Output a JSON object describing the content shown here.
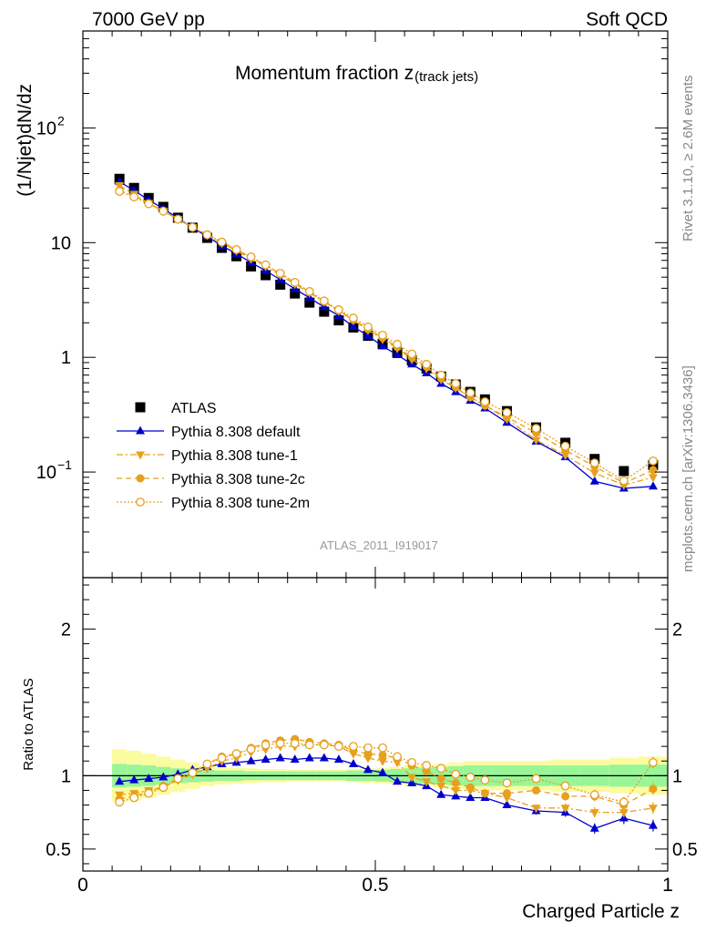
{
  "header": {
    "left": "7000 GeV pp",
    "right": "Soft QCD"
  },
  "side_labels": {
    "rivet": "Rivet 3.1.10, ≥ 2.6M events",
    "mcplots": "mcplots.cern.ch [arXiv:1306.3436]"
  },
  "watermark": "ATLAS_2011_I919017",
  "colors": {
    "atlas": "#000000",
    "default": "#0000cc",
    "tune": "#e6a01e",
    "band_inner": "#98f598",
    "band_outer": "#fbfba0"
  },
  "chart_data": [
    {
      "type": "line",
      "title": "Momentum fraction z",
      "title_sub": "(track jets)",
      "ylabel": "(1/Njet)dN/dz",
      "yscale": "log",
      "ylim": [
        0.012,
        700
      ],
      "xlim": [
        0,
        1
      ],
      "ytick_labels": [
        {
          "value": 100,
          "label": "10",
          "sup": "2"
        },
        {
          "value": 10,
          "label": "10",
          "sup": ""
        },
        {
          "value": 1,
          "label": "1",
          "sup": ""
        },
        {
          "value": 0.1,
          "label": "10",
          "sup": "−1"
        }
      ],
      "x": [
        0.0625,
        0.0875,
        0.1125,
        0.1375,
        0.1625,
        0.1875,
        0.2125,
        0.2375,
        0.2625,
        0.2875,
        0.3125,
        0.3375,
        0.3625,
        0.3875,
        0.4125,
        0.4375,
        0.4625,
        0.4875,
        0.5125,
        0.5375,
        0.5625,
        0.5875,
        0.6125,
        0.6375,
        0.6625,
        0.6875,
        0.725,
        0.775,
        0.825,
        0.875,
        0.925,
        0.975
      ],
      "series": [
        {
          "name": "ATLAS",
          "marker": "square",
          "values": [
            36,
            30,
            24.5,
            20.5,
            16.5,
            13.5,
            11,
            9,
            7.6,
            6.2,
            5.2,
            4.3,
            3.6,
            3.0,
            2.5,
            2.1,
            1.82,
            1.54,
            1.31,
            1.1,
            0.94,
            0.8,
            0.68,
            0.58,
            0.5,
            0.43,
            0.34,
            0.245,
            0.18,
            0.13,
            0.102,
            0.115
          ]
        },
        {
          "name": "Pythia 8.308 default",
          "marker": "triangle-up",
          "line": "solid",
          "values": [
            34,
            28.5,
            23.5,
            19.8,
            16.3,
            13.5,
            11.3,
            9.4,
            8.0,
            6.7,
            5.7,
            4.75,
            3.95,
            3.3,
            2.75,
            2.3,
            1.85,
            1.54,
            1.25,
            1.05,
            0.87,
            0.73,
            0.59,
            0.5,
            0.42,
            0.36,
            0.27,
            0.185,
            0.135,
            0.083,
            0.072,
            0.075
          ]
        },
        {
          "name": "Pythia 8.308 tune-1",
          "marker": "triangle-down",
          "line": "dashdot",
          "values": [
            31.5,
            26.5,
            22,
            18.8,
            16,
            13.6,
            11.6,
            9.9,
            8.5,
            7.2,
            6.2,
            5.2,
            4.35,
            3.65,
            3.05,
            2.53,
            2.1,
            1.73,
            1.44,
            1.2,
            0.96,
            0.8,
            0.64,
            0.54,
            0.45,
            0.38,
            0.29,
            0.19,
            0.14,
            0.098,
            0.077,
            0.09
          ]
        },
        {
          "name": "Pythia 8.308 tune-2c",
          "marker": "circle",
          "line": "dashed",
          "values": [
            28.5,
            25.5,
            22,
            19,
            16.1,
            13.7,
            11.8,
            10.2,
            8.7,
            7.4,
            6.35,
            5.35,
            4.5,
            3.7,
            3.05,
            2.55,
            2.12,
            1.76,
            1.48,
            1.23,
            1.0,
            0.83,
            0.66,
            0.55,
            0.45,
            0.38,
            0.3,
            0.22,
            0.155,
            0.112,
            0.08,
            0.104
          ]
        },
        {
          "name": "Pythia 8.308 tune-2m",
          "marker": "circle-open",
          "line": "dotted",
          "values": [
            28,
            25,
            21.8,
            18.8,
            16,
            13.6,
            11.7,
            10.1,
            8.7,
            7.5,
            6.4,
            5.4,
            4.5,
            3.75,
            3.1,
            2.6,
            2.2,
            1.84,
            1.56,
            1.3,
            1.07,
            0.87,
            0.7,
            0.59,
            0.49,
            0.41,
            0.33,
            0.24,
            0.168,
            0.12,
            0.084,
            0.125
          ]
        }
      ]
    },
    {
      "type": "line",
      "ylabel": "Ratio to ATLAS",
      "xlabel": "Charged Particle z",
      "ylim": [
        0.35,
        2.35
      ],
      "xlim": [
        0,
        1
      ],
      "yticks": [
        0.5,
        1,
        2
      ],
      "ytick_labels": [
        "0.5",
        "1",
        "2"
      ],
      "xticks": [
        0,
        0.5,
        1
      ],
      "xtick_labels": [
        "0",
        "0.5",
        "1"
      ],
      "band_edges": [
        0.05,
        0.075,
        0.1,
        0.125,
        0.15,
        0.175,
        0.2,
        0.225,
        0.25,
        0.275,
        0.3,
        0.325,
        0.35,
        0.375,
        0.4,
        0.425,
        0.45,
        0.475,
        0.5,
        0.525,
        0.55,
        0.575,
        0.6,
        0.625,
        0.65,
        0.675,
        0.7,
        0.75,
        0.8,
        0.85,
        0.9,
        0.95,
        1.0
      ],
      "band_inner": [
        0.08,
        0.075,
        0.07,
        0.06,
        0.05,
        0.045,
        0.04,
        0.035,
        0.035,
        0.03,
        0.03,
        0.03,
        0.03,
        0.03,
        0.03,
        0.03,
        0.035,
        0.035,
        0.04,
        0.045,
        0.05,
        0.055,
        0.06,
        0.065,
        0.07,
        0.07,
        0.07,
        0.07,
        0.07,
        0.07,
        0.075,
        0.075
      ],
      "band_outer": [
        0.18,
        0.17,
        0.15,
        0.13,
        0.11,
        0.09,
        0.07,
        0.06,
        0.055,
        0.05,
        0.045,
        0.045,
        0.04,
        0.04,
        0.04,
        0.04,
        0.045,
        0.05,
        0.055,
        0.06,
        0.07,
        0.07,
        0.08,
        0.09,
        0.1,
        0.1,
        0.1,
        0.1,
        0.11,
        0.11,
        0.12,
        0.13
      ],
      "x": [
        0.0625,
        0.0875,
        0.1125,
        0.1375,
        0.1625,
        0.1875,
        0.2125,
        0.2375,
        0.2625,
        0.2875,
        0.3125,
        0.3375,
        0.3625,
        0.3875,
        0.4125,
        0.4375,
        0.4625,
        0.4875,
        0.5125,
        0.5375,
        0.5625,
        0.5875,
        0.6125,
        0.6375,
        0.6625,
        0.6875,
        0.725,
        0.775,
        0.825,
        0.875,
        0.925,
        0.975
      ],
      "series": [
        {
          "name": "Pythia 8.308 default",
          "values": [
            0.96,
            0.97,
            0.98,
            0.99,
            1.01,
            1.04,
            1.06,
            1.08,
            1.09,
            1.1,
            1.11,
            1.12,
            1.11,
            1.12,
            1.12,
            1.11,
            1.08,
            1.04,
            1.02,
            0.96,
            0.95,
            0.93,
            0.87,
            0.86,
            0.85,
            0.85,
            0.8,
            0.76,
            0.75,
            0.64,
            0.71,
            0.66
          ],
          "err": [
            0.01,
            0.01,
            0.01,
            0.01,
            0.01,
            0.01,
            0.01,
            0.01,
            0.01,
            0.01,
            0.01,
            0.01,
            0.01,
            0.01,
            0.01,
            0.01,
            0.01,
            0.01,
            0.01,
            0.01,
            0.015,
            0.015,
            0.02,
            0.02,
            0.02,
            0.02,
            0.02,
            0.025,
            0.03,
            0.035,
            0.04,
            0.04
          ]
        },
        {
          "name": "Pythia 8.308 tune-1",
          "values": [
            0.87,
            0.88,
            0.9,
            0.92,
            0.97,
            1.01,
            1.05,
            1.1,
            1.12,
            1.16,
            1.18,
            1.2,
            1.2,
            1.21,
            1.21,
            1.2,
            1.15,
            1.12,
            1.1,
            1.09,
            0.99,
            0.96,
            0.93,
            0.9,
            0.9,
            0.88,
            0.85,
            0.78,
            0.78,
            0.75,
            0.75,
            0.78
          ],
          "err": [
            0.01,
            0.01,
            0.01,
            0.01,
            0.01,
            0.01,
            0.01,
            0.01,
            0.01,
            0.01,
            0.01,
            0.01,
            0.01,
            0.01,
            0.01,
            0.01,
            0.01,
            0.01,
            0.01,
            0.01,
            0.015,
            0.015,
            0.02,
            0.02,
            0.02,
            0.02,
            0.02,
            0.025,
            0.03,
            0.035,
            0.035,
            0.04
          ]
        },
        {
          "name": "Pythia 8.308 tune-2c",
          "values": [
            0.84,
            0.86,
            0.89,
            0.93,
            0.98,
            1.02,
            1.08,
            1.13,
            1.15,
            1.19,
            1.22,
            1.24,
            1.25,
            1.23,
            1.22,
            1.21,
            1.17,
            1.15,
            1.14,
            1.12,
            1.07,
            1.03,
            0.98,
            0.95,
            0.92,
            0.88,
            0.88,
            0.9,
            0.86,
            0.86,
            0.8,
            0.91
          ],
          "err": [
            0.01,
            0.01,
            0.01,
            0.01,
            0.01,
            0.01,
            0.01,
            0.01,
            0.01,
            0.01,
            0.01,
            0.01,
            0.01,
            0.01,
            0.01,
            0.01,
            0.01,
            0.01,
            0.01,
            0.01,
            0.015,
            0.015,
            0.02,
            0.02,
            0.02,
            0.02,
            0.02,
            0.025,
            0.03,
            0.035,
            0.035,
            0.04
          ]
        },
        {
          "name": "Pythia 8.308 tune-2m",
          "values": [
            0.82,
            0.85,
            0.88,
            0.92,
            0.98,
            1.02,
            1.08,
            1.12,
            1.15,
            1.18,
            1.21,
            1.22,
            1.22,
            1.21,
            1.21,
            1.2,
            1.2,
            1.19,
            1.19,
            1.13,
            1.09,
            1.07,
            1.05,
            1.01,
            0.99,
            0.97,
            0.95,
            0.98,
            0.93,
            0.87,
            0.82,
            1.09
          ],
          "err": [
            0.01,
            0.01,
            0.01,
            0.01,
            0.01,
            0.01,
            0.01,
            0.01,
            0.01,
            0.01,
            0.01,
            0.01,
            0.01,
            0.01,
            0.01,
            0.01,
            0.01,
            0.01,
            0.01,
            0.01,
            0.015,
            0.015,
            0.02,
            0.02,
            0.02,
            0.02,
            0.02,
            0.025,
            0.03,
            0.035,
            0.035,
            0.04
          ]
        }
      ]
    }
  ]
}
